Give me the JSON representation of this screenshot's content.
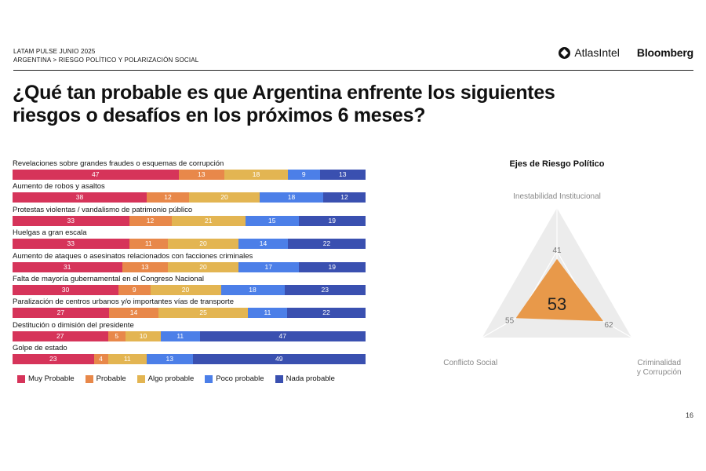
{
  "header": {
    "line1": "LATAM PULSE JUNIO 2025",
    "line2": "ARGENTINA > RIESGO POLÍTICO Y POLARIZACIÓN SOCIAL",
    "logo_atlas": "AtlasIntel",
    "logo_bloomberg": "Bloomberg"
  },
  "title": "¿Qué tan probable es que Argentina enfrente los siguientes riesgos o desafíos en los próximos 6 meses?",
  "page_number": "16",
  "chart_data": [
    {
      "type": "bar",
      "orientation": "horizontal-stacked-100",
      "categories": [
        "Revelaciones sobre grandes fraudes o esquemas de corrupción",
        "Aumento de robos y asaltos",
        "Protestas violentas / vandalismo de patrimonio público",
        "Huelgas a gran escala",
        "Aumento de ataques o asesinatos relacionados con facciones criminales",
        "Falta de mayoría gubernamental en el Congreso Nacional",
        "Paralización de centros urbanos y/o importantes vías de transporte",
        "Destitución o dimisión del presidente",
        "Golpe de estado"
      ],
      "series": [
        {
          "name": "Muy Probable",
          "color": "#D6345A",
          "values": [
            47,
            38,
            33,
            33,
            31,
            30,
            27,
            27,
            23
          ]
        },
        {
          "name": "Probable",
          "color": "#E8884A",
          "values": [
            13,
            12,
            12,
            11,
            13,
            9,
            14,
            5,
            4
          ]
        },
        {
          "name": "Algo probable",
          "color": "#E3B552",
          "values": [
            18,
            20,
            21,
            20,
            20,
            20,
            25,
            10,
            11
          ]
        },
        {
          "name": "Poco probable",
          "color": "#4C7FE8",
          "values": [
            9,
            18,
            15,
            14,
            17,
            18,
            11,
            11,
            13
          ]
        },
        {
          "name": "Nada probable",
          "color": "#3A50B0",
          "values": [
            13,
            12,
            19,
            22,
            19,
            23,
            22,
            47,
            49
          ]
        }
      ],
      "legend": "bottom"
    },
    {
      "type": "radar",
      "title": "Ejes de Riesgo Político",
      "axes": [
        {
          "label": "Inestabilidad Institucional",
          "value": 41
        },
        {
          "label": "Criminalidad y Corrupción",
          "value": 62
        },
        {
          "label": "Conflicto Social",
          "value": 55
        }
      ],
      "center_value": 53,
      "range": [
        0,
        100
      ],
      "fill_color": "#E8994A"
    }
  ]
}
